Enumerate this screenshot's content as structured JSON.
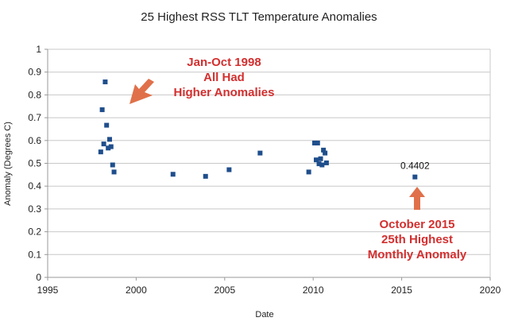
{
  "chart_data": {
    "type": "scatter",
    "title": "25 Highest RSS TLT Temperature Anomalies",
    "xlabel": "Date",
    "ylabel": "Anomaly (Degrees C)",
    "xlim": [
      1995,
      2020
    ],
    "ylim": [
      0,
      1
    ],
    "xticks": [
      1995,
      2000,
      2005,
      2010,
      2015,
      2020
    ],
    "yticks": [
      0,
      0.1,
      0.2,
      0.3,
      0.4,
      0.5,
      0.6,
      0.7,
      0.8,
      0.9,
      1
    ],
    "ytick_labels": [
      "0",
      "0.1",
      "0.2",
      "0.3",
      "0.4",
      "0.5",
      "0.6",
      "0.7",
      "0.8",
      "0.9",
      "1"
    ],
    "grid": "horizontal",
    "marker_color": "#1f4e8c",
    "points": [
      {
        "x": 1998.0,
        "y": 0.55
      },
      {
        "x": 1998.08,
        "y": 0.735
      },
      {
        "x": 1998.17,
        "y": 0.585
      },
      {
        "x": 1998.25,
        "y": 0.857
      },
      {
        "x": 1998.33,
        "y": 0.667
      },
      {
        "x": 1998.42,
        "y": 0.567
      },
      {
        "x": 1998.5,
        "y": 0.605
      },
      {
        "x": 1998.58,
        "y": 0.573
      },
      {
        "x": 1998.67,
        "y": 0.493
      },
      {
        "x": 1998.75,
        "y": 0.462
      },
      {
        "x": 2002.08,
        "y": 0.452
      },
      {
        "x": 2003.92,
        "y": 0.443
      },
      {
        "x": 2005.25,
        "y": 0.472
      },
      {
        "x": 2007.0,
        "y": 0.545
      },
      {
        "x": 2009.75,
        "y": 0.462
      },
      {
        "x": 2010.08,
        "y": 0.589
      },
      {
        "x": 2010.17,
        "y": 0.515
      },
      {
        "x": 2010.25,
        "y": 0.589
      },
      {
        "x": 2010.33,
        "y": 0.498
      },
      {
        "x": 2010.42,
        "y": 0.52
      },
      {
        "x": 2010.5,
        "y": 0.493
      },
      {
        "x": 2010.58,
        "y": 0.558
      },
      {
        "x": 2010.67,
        "y": 0.545
      },
      {
        "x": 2010.75,
        "y": 0.502
      },
      {
        "x": 2015.75,
        "y": 0.4402,
        "label": "0.4402"
      }
    ],
    "annotations": [
      {
        "lines": [
          "Jan-Oct 1998",
          "All Had",
          "Higher Anomalies"
        ],
        "color": "#d32f2f",
        "arrow_color": "#e0704a",
        "arrow_direction": "down-left"
      },
      {
        "lines": [
          "October 2015",
          "25th Highest",
          "Monthly Anomaly"
        ],
        "color": "#d32f2f",
        "arrow_color": "#e0704a",
        "arrow_direction": "up"
      }
    ]
  }
}
